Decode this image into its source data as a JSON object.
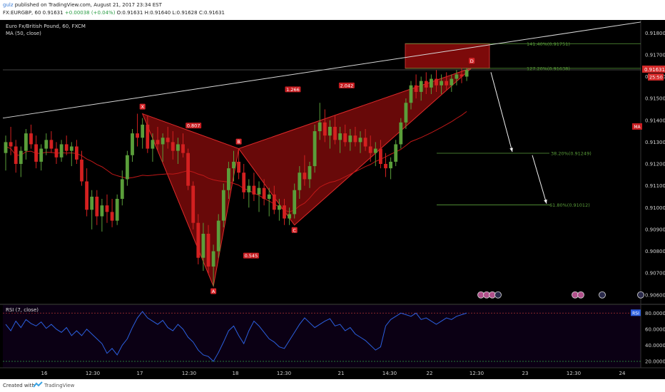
{
  "header": {
    "user": "gulz",
    "published": "published on TradingView.com, August 21, 2017 23:34 EST",
    "symbol_line": "FX:EURGBP, 60",
    "quote": "0.91631",
    "change": "+0.00038 (+0.04%)",
    "ohlc": "O:0.91631 H:0.91640 L:0.91628 C:0.91631"
  },
  "legend": {
    "instrument": "Euro Fx/British Pound, 60, FXCM",
    "ma": "MA (50, close)",
    "rsi": "RSI (7, close)"
  },
  "footer": {
    "created": "Created with",
    "brand": "TradingView"
  },
  "colors": {
    "background": "#000000",
    "up_candle": "#5a9e3a",
    "down_candle": "#d32020",
    "pattern_fill": "#7a0a0a",
    "pattern_line": "#e02a2a",
    "rsi_line": "#2c5fe0",
    "fib_line": "#5a9e3a",
    "trendline": "#d8d8d8"
  },
  "chart_data": {
    "type": "candlestick",
    "price_axis": {
      "ticks": [
        "0.91800",
        "0.91700",
        "0.91600",
        "0.91500",
        "0.91400",
        "0.91300",
        "0.91200",
        "0.91100",
        "0.91000",
        "0.90900",
        "0.90800",
        "0.90700",
        "0.90600"
      ],
      "last_price_label": "0.91631",
      "countdown_label": "25:50",
      "ma_badge": "MA"
    },
    "time_axis": {
      "labels": [
        "16",
        "12:30",
        "17",
        "12:30",
        "18",
        "12:30",
        "21",
        "14:30",
        "22",
        "12:30",
        "23",
        "12:30",
        "24"
      ]
    },
    "harmonic_pattern": {
      "points": [
        {
          "label": "X",
          "bar": 27,
          "price": 0.9143
        },
        {
          "label": "A",
          "bar": 41,
          "price": 0.9064
        },
        {
          "label": "B",
          "bar": 46,
          "price": 0.9127
        },
        {
          "label": "C",
          "bar": 57,
          "price": 0.9092
        },
        {
          "label": "D",
          "bar": 92,
          "price": 0.9164
        }
      ],
      "ratios": [
        {
          "text": "0.807"
        },
        {
          "text": "0.545"
        },
        {
          "text": "2.042"
        },
        {
          "text": "1.266"
        }
      ]
    },
    "fib_levels": [
      {
        "text": "141.40%(0.91751)",
        "price": 0.91751
      },
      {
        "text": "127.20%(0.91638)",
        "price": 0.91638
      },
      {
        "text": "38.20%(0.91249)",
        "price": 0.91249
      },
      {
        "text": "61.80%(0.91012)",
        "price": 0.91012
      }
    ],
    "rsi": {
      "levels": [
        80,
        20
      ],
      "ticks": [
        "80.0000",
        "60.0000",
        "40.0000",
        "20.0000"
      ],
      "badge": "RSI",
      "values": [
        66,
        58,
        70,
        62,
        72,
        67,
        64,
        69,
        61,
        66,
        60,
        56,
        62,
        52,
        58,
        52,
        60,
        54,
        48,
        42,
        30,
        36,
        28,
        40,
        48,
        62,
        74,
        82,
        74,
        70,
        66,
        71,
        62,
        58,
        66,
        60,
        50,
        44,
        34,
        28,
        26,
        20,
        31,
        44,
        58,
        64,
        52,
        42,
        58,
        70,
        64,
        56,
        48,
        44,
        38,
        36,
        46,
        56,
        66,
        74,
        68,
        62,
        66,
        70,
        73,
        64,
        66,
        58,
        62,
        54,
        50,
        46,
        40,
        34,
        38,
        64,
        72,
        76,
        80,
        78,
        76,
        80,
        72,
        74,
        70,
        66,
        70,
        74,
        72,
        76,
        78,
        80
      ]
    },
    "candles": [
      [
        0.9125,
        0.9133,
        0.9117,
        0.913
      ],
      [
        0.913,
        0.9137,
        0.9124,
        0.9128
      ],
      [
        0.9128,
        0.9131,
        0.9116,
        0.912
      ],
      [
        0.912,
        0.9128,
        0.9114,
        0.9126
      ],
      [
        0.9126,
        0.9136,
        0.9122,
        0.9134
      ],
      [
        0.9134,
        0.9138,
        0.9127,
        0.9129
      ],
      [
        0.9129,
        0.9133,
        0.9118,
        0.9121
      ],
      [
        0.9121,
        0.9129,
        0.9117,
        0.9127
      ],
      [
        0.9127,
        0.9134,
        0.9124,
        0.9131
      ],
      [
        0.9131,
        0.9135,
        0.9125,
        0.9127
      ],
      [
        0.9127,
        0.913,
        0.912,
        0.9123
      ],
      [
        0.9123,
        0.9131,
        0.9121,
        0.9129
      ],
      [
        0.9129,
        0.9133,
        0.9124,
        0.9126
      ],
      [
        0.9126,
        0.913,
        0.9119,
        0.9128
      ],
      [
        0.9128,
        0.9131,
        0.912,
        0.9122
      ],
      [
        0.9122,
        0.9126,
        0.911,
        0.9112
      ],
      [
        0.9112,
        0.9118,
        0.9096,
        0.9099
      ],
      [
        0.9099,
        0.9108,
        0.909,
        0.9105
      ],
      [
        0.9105,
        0.9108,
        0.9092,
        0.9096
      ],
      [
        0.9096,
        0.9104,
        0.9089,
        0.9101
      ],
      [
        0.9101,
        0.9106,
        0.9093,
        0.9098
      ],
      [
        0.9098,
        0.9104,
        0.9091,
        0.9094
      ],
      [
        0.9094,
        0.9106,
        0.9092,
        0.9104
      ],
      [
        0.9104,
        0.9117,
        0.9101,
        0.9113
      ],
      [
        0.9113,
        0.9126,
        0.911,
        0.9124
      ],
      [
        0.9124,
        0.9136,
        0.9121,
        0.9134
      ],
      [
        0.9134,
        0.9143,
        0.9128,
        0.9132
      ],
      [
        0.9132,
        0.9141,
        0.9127,
        0.9138
      ],
      [
        0.9138,
        0.9142,
        0.9125,
        0.9127
      ],
      [
        0.9127,
        0.9134,
        0.9121,
        0.9131
      ],
      [
        0.9131,
        0.9137,
        0.9126,
        0.9129
      ],
      [
        0.9129,
        0.9134,
        0.9121,
        0.9132
      ],
      [
        0.9132,
        0.9137,
        0.9127,
        0.913
      ],
      [
        0.913,
        0.9135,
        0.9122,
        0.9126
      ],
      [
        0.9126,
        0.9132,
        0.912,
        0.9129
      ],
      [
        0.9129,
        0.9134,
        0.9123,
        0.9125
      ],
      [
        0.9125,
        0.9127,
        0.9108,
        0.911
      ],
      [
        0.911,
        0.9112,
        0.909,
        0.9093
      ],
      [
        0.9093,
        0.9097,
        0.9074,
        0.9077
      ],
      [
        0.9077,
        0.9093,
        0.9071,
        0.9088
      ],
      [
        0.9088,
        0.9092,
        0.907,
        0.9073
      ],
      [
        0.9073,
        0.9083,
        0.9064,
        0.908
      ],
      [
        0.908,
        0.9097,
        0.9077,
        0.9094
      ],
      [
        0.9094,
        0.9111,
        0.9091,
        0.9108
      ],
      [
        0.9108,
        0.9121,
        0.9104,
        0.9118
      ],
      [
        0.9118,
        0.9126,
        0.9112,
        0.9121
      ],
      [
        0.9121,
        0.9127,
        0.9113,
        0.9116
      ],
      [
        0.9116,
        0.912,
        0.9104,
        0.9107
      ],
      [
        0.9107,
        0.9113,
        0.91,
        0.911
      ],
      [
        0.911,
        0.9116,
        0.9103,
        0.9106
      ],
      [
        0.9106,
        0.9112,
        0.9098,
        0.9109
      ],
      [
        0.9109,
        0.9113,
        0.9101,
        0.9104
      ],
      [
        0.9104,
        0.9109,
        0.9096,
        0.9106
      ],
      [
        0.9106,
        0.911,
        0.9097,
        0.9099
      ],
      [
        0.9099,
        0.9104,
        0.9094,
        0.9101
      ],
      [
        0.9101,
        0.9104,
        0.9092,
        0.9095
      ],
      [
        0.9095,
        0.91,
        0.9092,
        0.9097
      ],
      [
        0.9097,
        0.9111,
        0.9095,
        0.9108
      ],
      [
        0.9108,
        0.9119,
        0.9104,
        0.9116
      ],
      [
        0.9116,
        0.9124,
        0.911,
        0.9113
      ],
      [
        0.9113,
        0.9121,
        0.9109,
        0.9119
      ],
      [
        0.9119,
        0.9138,
        0.9116,
        0.9135
      ],
      [
        0.9135,
        0.9148,
        0.9131,
        0.9139
      ],
      [
        0.9139,
        0.9145,
        0.913,
        0.9133
      ],
      [
        0.9133,
        0.914,
        0.9127,
        0.9137
      ],
      [
        0.9137,
        0.9142,
        0.9129,
        0.9131
      ],
      [
        0.9131,
        0.9137,
        0.9125,
        0.9134
      ],
      [
        0.9134,
        0.9138,
        0.9128,
        0.913
      ],
      [
        0.913,
        0.9136,
        0.9126,
        0.9133
      ],
      [
        0.9133,
        0.9137,
        0.9128,
        0.913
      ],
      [
        0.913,
        0.9135,
        0.9125,
        0.9132
      ],
      [
        0.9132,
        0.9136,
        0.9126,
        0.9128
      ],
      [
        0.9128,
        0.9133,
        0.9121,
        0.9125
      ],
      [
        0.9125,
        0.913,
        0.9119,
        0.9127
      ],
      [
        0.9127,
        0.9131,
        0.9118,
        0.912
      ],
      [
        0.912,
        0.9125,
        0.9114,
        0.9118
      ],
      [
        0.9118,
        0.9123,
        0.9113,
        0.9121
      ],
      [
        0.9121,
        0.9131,
        0.9119,
        0.9129
      ],
      [
        0.9129,
        0.9141,
        0.9127,
        0.9139
      ],
      [
        0.9139,
        0.915,
        0.9136,
        0.9148
      ],
      [
        0.9148,
        0.9158,
        0.9145,
        0.9156
      ],
      [
        0.9156,
        0.9161,
        0.915,
        0.9153
      ],
      [
        0.9153,
        0.916,
        0.9149,
        0.9158
      ],
      [
        0.9158,
        0.9162,
        0.9152,
        0.9155
      ],
      [
        0.9155,
        0.9161,
        0.9152,
        0.9159
      ],
      [
        0.9159,
        0.9163,
        0.9153,
        0.9156
      ],
      [
        0.9156,
        0.9161,
        0.9152,
        0.9158
      ],
      [
        0.9158,
        0.9162,
        0.9154,
        0.9156
      ],
      [
        0.9156,
        0.9161,
        0.9153,
        0.9159
      ],
      [
        0.9159,
        0.9163,
        0.9156,
        0.9161
      ],
      [
        0.9161,
        0.9164,
        0.9157,
        0.916
      ],
      [
        0.916,
        0.9164,
        0.9158,
        0.9163
      ]
    ]
  }
}
